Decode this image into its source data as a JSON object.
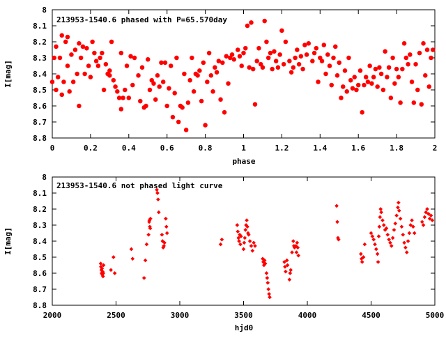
{
  "chart_data": [
    {
      "type": "scatter",
      "title": "213953-1540.6 phased with P=65.570day",
      "xlabel": "phase",
      "ylabel": "I[mag]",
      "xlim": [
        0,
        2
      ],
      "ylim": [
        8.8,
        8.0
      ],
      "y_inverted": true,
      "grid": false,
      "legend": "none",
      "marker": "star",
      "color": "#ff0000",
      "x_ticks": [
        "0",
        "0.2",
        "0.4",
        "0.6",
        "0.8",
        "1",
        "1.2",
        "1.4",
        "1.6",
        "1.8",
        "2"
      ],
      "y_ticks": [
        "8",
        "8.1",
        "8.2",
        "8.3",
        "8.4",
        "8.5",
        "8.6",
        "8.7",
        "8.8"
      ],
      "points": [
        [
          0.0,
          8.45
        ],
        [
          0.01,
          8.3
        ],
        [
          0.02,
          8.5
        ],
        [
          0.02,
          8.23
        ],
        [
          0.03,
          8.42
        ],
        [
          0.04,
          8.3
        ],
        [
          0.05,
          8.16
        ],
        [
          0.05,
          8.53
        ],
        [
          0.06,
          8.45
        ],
        [
          0.07,
          8.2
        ],
        [
          0.08,
          8.17
        ],
        [
          0.08,
          8.35
        ],
        [
          0.09,
          8.51
        ],
        [
          0.1,
          8.28
        ],
        [
          0.11,
          8.45
        ],
        [
          0.12,
          8.25
        ],
        [
          0.13,
          8.4
        ],
        [
          0.14,
          8.6
        ],
        [
          0.14,
          8.21
        ],
        [
          0.15,
          8.3
        ],
        [
          0.16,
          8.23
        ],
        [
          0.17,
          8.4
        ],
        [
          0.18,
          8.24
        ],
        [
          0.19,
          8.35
        ],
        [
          0.2,
          8.42
        ],
        [
          0.21,
          8.2
        ],
        [
          0.22,
          8.27
        ],
        [
          0.23,
          8.32
        ],
        [
          0.24,
          8.35
        ],
        [
          0.25,
          8.3
        ],
        [
          0.26,
          8.27
        ],
        [
          0.27,
          8.5
        ],
        [
          0.28,
          8.34
        ],
        [
          0.29,
          8.4
        ],
        [
          0.3,
          8.41
        ],
        [
          0.3,
          8.38
        ],
        [
          0.31,
          8.2
        ],
        [
          0.32,
          8.44
        ],
        [
          0.33,
          8.48
        ],
        [
          0.34,
          8.51
        ],
        [
          0.35,
          8.55
        ],
        [
          0.36,
          8.62
        ],
        [
          0.36,
          8.27
        ],
        [
          0.37,
          8.55
        ],
        [
          0.38,
          8.5
        ],
        [
          0.39,
          8.35
        ],
        [
          0.4,
          8.55
        ],
        [
          0.41,
          8.29
        ],
        [
          0.42,
          8.47
        ],
        [
          0.43,
          8.3
        ],
        [
          0.45,
          8.41
        ],
        [
          0.46,
          8.57
        ],
        [
          0.47,
          8.36
        ],
        [
          0.48,
          8.61
        ],
        [
          0.49,
          8.6
        ],
        [
          0.5,
          8.31
        ],
        [
          0.51,
          8.5
        ],
        [
          0.52,
          8.44
        ],
        [
          0.53,
          8.46
        ],
        [
          0.54,
          8.56
        ],
        [
          0.55,
          8.41
        ],
        [
          0.56,
          8.48
        ],
        [
          0.57,
          8.33
        ],
        [
          0.58,
          8.45
        ],
        [
          0.59,
          8.33
        ],
        [
          0.6,
          8.6
        ],
        [
          0.61,
          8.49
        ],
        [
          0.62,
          8.35
        ],
        [
          0.63,
          8.67
        ],
        [
          0.64,
          8.52
        ],
        [
          0.65,
          8.3
        ],
        [
          0.66,
          8.7
        ],
        [
          0.67,
          8.6
        ],
        [
          0.68,
          8.61
        ],
        [
          0.69,
          8.4
        ],
        [
          0.7,
          8.75
        ],
        [
          0.71,
          8.58
        ],
        [
          0.72,
          8.44
        ],
        [
          0.73,
          8.3
        ],
        [
          0.74,
          8.51
        ],
        [
          0.75,
          8.4
        ],
        [
          0.76,
          8.41
        ],
        [
          0.77,
          8.38
        ],
        [
          0.78,
          8.57
        ],
        [
          0.79,
          8.33
        ],
        [
          0.8,
          8.72
        ],
        [
          0.81,
          8.45
        ],
        [
          0.82,
          8.27
        ],
        [
          0.83,
          8.41
        ],
        [
          0.84,
          8.51
        ],
        [
          0.85,
          8.36
        ],
        [
          0.86,
          8.39
        ],
        [
          0.87,
          8.32
        ],
        [
          0.88,
          8.56
        ],
        [
          0.89,
          8.33
        ],
        [
          0.9,
          8.64
        ],
        [
          0.91,
          8.29
        ],
        [
          0.92,
          8.46
        ],
        [
          0.93,
          8.3
        ],
        [
          0.94,
          8.28
        ],
        [
          0.95,
          8.31
        ],
        [
          0.97,
          8.25
        ],
        [
          0.98,
          8.29
        ],
        [
          0.99,
          8.35
        ],
        [
          1.0,
          8.27
        ],
        [
          1.01,
          8.24
        ],
        [
          1.02,
          8.1
        ],
        [
          1.03,
          8.36
        ],
        [
          1.04,
          8.08
        ],
        [
          1.05,
          8.37
        ],
        [
          1.06,
          8.59
        ],
        [
          1.07,
          8.32
        ],
        [
          1.08,
          8.24
        ],
        [
          1.09,
          8.34
        ],
        [
          1.1,
          8.36
        ],
        [
          1.11,
          8.07
        ],
        [
          1.12,
          8.2
        ],
        [
          1.13,
          8.3
        ],
        [
          1.14,
          8.27
        ],
        [
          1.15,
          8.37
        ],
        [
          1.16,
          8.26
        ],
        [
          1.17,
          8.32
        ],
        [
          1.18,
          8.36
        ],
        [
          1.19,
          8.28
        ],
        [
          1.2,
          8.13
        ],
        [
          1.21,
          8.34
        ],
        [
          1.22,
          8.2
        ],
        [
          1.24,
          8.32
        ],
        [
          1.25,
          8.39
        ],
        [
          1.26,
          8.36
        ],
        [
          1.27,
          8.3
        ],
        [
          1.28,
          8.25
        ],
        [
          1.29,
          8.34
        ],
        [
          1.3,
          8.29
        ],
        [
          1.31,
          8.37
        ],
        [
          1.32,
          8.22
        ],
        [
          1.33,
          8.28
        ],
        [
          1.34,
          8.21
        ],
        [
          1.36,
          8.32
        ],
        [
          1.37,
          8.27
        ],
        [
          1.38,
          8.24
        ],
        [
          1.39,
          8.45
        ],
        [
          1.4,
          8.3
        ],
        [
          1.41,
          8.32
        ],
        [
          1.42,
          8.22
        ],
        [
          1.43,
          8.4
        ],
        [
          1.44,
          8.28
        ],
        [
          1.45,
          8.35
        ],
        [
          1.46,
          8.47
        ],
        [
          1.47,
          8.3
        ],
        [
          1.48,
          8.23
        ],
        [
          1.49,
          8.41
        ],
        [
          1.5,
          8.33
        ],
        [
          1.51,
          8.55
        ],
        [
          1.52,
          8.48
        ],
        [
          1.53,
          8.38
        ],
        [
          1.54,
          8.51
        ],
        [
          1.55,
          8.3
        ],
        [
          1.56,
          8.44
        ],
        [
          1.57,
          8.49
        ],
        [
          1.58,
          8.42
        ],
        [
          1.59,
          8.5
        ],
        [
          1.6,
          8.47
        ],
        [
          1.61,
          8.38
        ],
        [
          1.62,
          8.64
        ],
        [
          1.63,
          8.47
        ],
        [
          1.64,
          8.42
        ],
        [
          1.65,
          8.45
        ],
        [
          1.66,
          8.35
        ],
        [
          1.67,
          8.46
        ],
        [
          1.68,
          8.42
        ],
        [
          1.69,
          8.37
        ],
        [
          1.7,
          8.48
        ],
        [
          1.71,
          8.36
        ],
        [
          1.72,
          8.4
        ],
        [
          1.73,
          8.5
        ],
        [
          1.74,
          8.26
        ],
        [
          1.75,
          8.42
        ],
        [
          1.76,
          8.36
        ],
        [
          1.77,
          8.55
        ],
        [
          1.78,
          8.3
        ],
        [
          1.79,
          8.46
        ],
        [
          1.8,
          8.37
        ],
        [
          1.81,
          8.42
        ],
        [
          1.82,
          8.58
        ],
        [
          1.83,
          8.37
        ],
        [
          1.84,
          8.21
        ],
        [
          1.85,
          8.3
        ],
        [
          1.86,
          8.34
        ],
        [
          1.87,
          8.28
        ],
        [
          1.88,
          8.45
        ],
        [
          1.89,
          8.58
        ],
        [
          1.9,
          8.34
        ],
        [
          1.91,
          8.5
        ],
        [
          1.92,
          8.27
        ],
        [
          1.93,
          8.59
        ],
        [
          1.94,
          8.21
        ],
        [
          1.95,
          8.41
        ],
        [
          1.96,
          8.25
        ],
        [
          1.97,
          8.48
        ],
        [
          1.98,
          8.3
        ],
        [
          1.99,
          8.25
        ]
      ]
    },
    {
      "type": "scatter",
      "title": "213953-1540.6 not phased light curve",
      "xlabel": "hjd0",
      "ylabel": "I[mag]",
      "xlim": [
        2000,
        5000
      ],
      "ylim": [
        8.8,
        8.0
      ],
      "y_inverted": true,
      "grid": false,
      "legend": "none",
      "marker": "diamond",
      "color": "#ff0000",
      "x_ticks": [
        "2000",
        "2500",
        "3000",
        "3500",
        "4000",
        "4500",
        "5000"
      ],
      "y_ticks": [
        "8",
        "8.1",
        "8.2",
        "8.3",
        "8.4",
        "8.5",
        "8.6",
        "8.7",
        "8.8"
      ],
      "points": [
        [
          2380,
          8.54
        ],
        [
          2382,
          8.56
        ],
        [
          2385,
          8.58
        ],
        [
          2387,
          8.6
        ],
        [
          2390,
          8.57
        ],
        [
          2392,
          8.61
        ],
        [
          2395,
          8.59
        ],
        [
          2398,
          8.62
        ],
        [
          2400,
          8.6
        ],
        [
          2402,
          8.55
        ],
        [
          2460,
          8.58
        ],
        [
          2480,
          8.5
        ],
        [
          2490,
          8.6
        ],
        [
          2620,
          8.45
        ],
        [
          2630,
          8.51
        ],
        [
          2720,
          8.63
        ],
        [
          2730,
          8.52
        ],
        [
          2740,
          8.42
        ],
        [
          2755,
          8.36
        ],
        [
          2760,
          8.28
        ],
        [
          2762,
          8.27
        ],
        [
          2765,
          8.31
        ],
        [
          2768,
          8.32
        ],
        [
          2770,
          8.26
        ],
        [
          2820,
          8.08
        ],
        [
          2825,
          8.1
        ],
        [
          2830,
          8.14
        ],
        [
          2835,
          8.22
        ],
        [
          2860,
          8.36
        ],
        [
          2865,
          8.4
        ],
        [
          2870,
          8.44
        ],
        [
          2875,
          8.43
        ],
        [
          2880,
          8.41
        ],
        [
          2890,
          8.26
        ],
        [
          2895,
          8.31
        ],
        [
          2900,
          8.35
        ],
        [
          3320,
          8.42
        ],
        [
          3330,
          8.39
        ],
        [
          3450,
          8.3
        ],
        [
          3455,
          8.34
        ],
        [
          3460,
          8.38
        ],
        [
          3465,
          8.4
        ],
        [
          3470,
          8.36
        ],
        [
          3475,
          8.42
        ],
        [
          3480,
          8.37
        ],
        [
          3500,
          8.45
        ],
        [
          3505,
          8.41
        ],
        [
          3510,
          8.38
        ],
        [
          3515,
          8.33
        ],
        [
          3520,
          8.3
        ],
        [
          3525,
          8.27
        ],
        [
          3530,
          8.31
        ],
        [
          3535,
          8.35
        ],
        [
          3540,
          8.36
        ],
        [
          3550,
          8.4
        ],
        [
          3560,
          8.43
        ],
        [
          3570,
          8.46
        ],
        [
          3580,
          8.41
        ],
        [
          3590,
          8.43
        ],
        [
          3650,
          8.51
        ],
        [
          3655,
          8.53
        ],
        [
          3660,
          8.55
        ],
        [
          3665,
          8.52
        ],
        [
          3670,
          8.54
        ],
        [
          3680,
          8.6
        ],
        [
          3685,
          8.63
        ],
        [
          3690,
          8.66
        ],
        [
          3695,
          8.7
        ],
        [
          3700,
          8.73
        ],
        [
          3705,
          8.75
        ],
        [
          3820,
          8.53
        ],
        [
          3825,
          8.56
        ],
        [
          3830,
          8.59
        ],
        [
          3840,
          8.52
        ],
        [
          3845,
          8.55
        ],
        [
          3860,
          8.64
        ],
        [
          3865,
          8.6
        ],
        [
          3870,
          8.58
        ],
        [
          3880,
          8.47
        ],
        [
          3890,
          8.4
        ],
        [
          3895,
          8.43
        ],
        [
          3900,
          8.44
        ],
        [
          3910,
          8.43
        ],
        [
          3915,
          8.47
        ],
        [
          3920,
          8.41
        ],
        [
          3925,
          8.44
        ],
        [
          3930,
          8.49
        ],
        [
          4230,
          8.18
        ],
        [
          4235,
          8.28
        ],
        [
          4240,
          8.38
        ],
        [
          4245,
          8.39
        ],
        [
          4420,
          8.48
        ],
        [
          4425,
          8.51
        ],
        [
          4430,
          8.53
        ],
        [
          4440,
          8.5
        ],
        [
          4450,
          8.42
        ],
        [
          4500,
          8.35
        ],
        [
          4510,
          8.37
        ],
        [
          4520,
          8.39
        ],
        [
          4530,
          8.42
        ],
        [
          4540,
          8.45
        ],
        [
          4550,
          8.48
        ],
        [
          4555,
          8.53
        ],
        [
          4560,
          8.37
        ],
        [
          4565,
          8.31
        ],
        [
          4570,
          8.25
        ],
        [
          4575,
          8.2
        ],
        [
          4580,
          8.22
        ],
        [
          4590,
          8.27
        ],
        [
          4600,
          8.3
        ],
        [
          4610,
          8.33
        ],
        [
          4620,
          8.32
        ],
        [
          4630,
          8.36
        ],
        [
          4640,
          8.39
        ],
        [
          4650,
          8.41
        ],
        [
          4660,
          8.43
        ],
        [
          4670,
          8.38
        ],
        [
          4680,
          8.33
        ],
        [
          4690,
          8.29
        ],
        [
          4700,
          8.24
        ],
        [
          4710,
          8.19
        ],
        [
          4715,
          8.16
        ],
        [
          4720,
          8.21
        ],
        [
          4730,
          8.26
        ],
        [
          4740,
          8.31
        ],
        [
          4750,
          8.36
        ],
        [
          4760,
          8.41
        ],
        [
          4770,
          8.44
        ],
        [
          4780,
          8.47
        ],
        [
          4790,
          8.4
        ],
        [
          4800,
          8.35
        ],
        [
          4810,
          8.3
        ],
        [
          4820,
          8.27
        ],
        [
          4830,
          8.31
        ],
        [
          4840,
          8.35
        ],
        [
          4900,
          8.28
        ],
        [
          4910,
          8.3
        ],
        [
          4920,
          8.25
        ],
        [
          4930,
          8.22
        ],
        [
          4940,
          8.2
        ],
        [
          4950,
          8.23
        ],
        [
          4960,
          8.26
        ],
        [
          4970,
          8.24
        ],
        [
          4980,
          8.27
        ]
      ]
    }
  ]
}
